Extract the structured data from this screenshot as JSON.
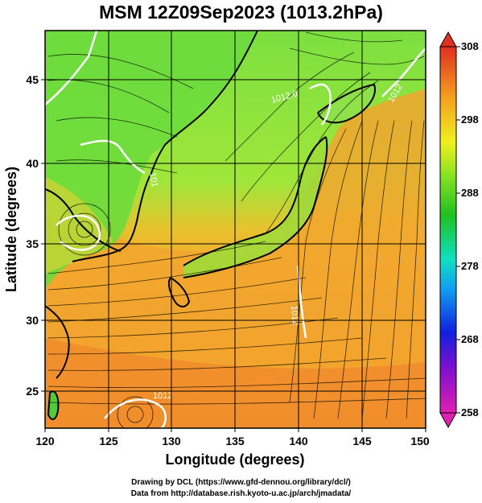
{
  "title": "MSM 12Z09Sep2023 (1013.2hPa)",
  "map": {
    "xlabel": "Longitude (degrees)",
    "ylabel": "Latitude  (degrees)",
    "x_ticks": [
      "120",
      "125",
      "130",
      "135",
      "140",
      "145",
      "150"
    ],
    "y_ticks": [
      "25",
      "30",
      "35",
      "40",
      "45"
    ],
    "lon_range": [
      120,
      150
    ],
    "lat_range": [
      22.4,
      47.6
    ],
    "contour_labels": [
      "1012.0",
      "1012",
      "101",
      "1012",
      "1012"
    ],
    "colors": {
      "cold_land": "#8ee84a",
      "green": "#5fd83a",
      "yellow": "#c8e832",
      "warm": "#f2a830",
      "hot": "#ef8a2a",
      "coast": "#000000",
      "contour": "#ffffff"
    }
  },
  "colorbar": {
    "tick_labels": [
      "308",
      "298",
      "288",
      "278",
      "268",
      "258"
    ],
    "min": 258,
    "max": 308
  },
  "footer": {
    "line1": "Drawing by DCL (https://www.gfd-dennou.org/library/dcl/)",
    "line2": "Data from http://database.rish.kyoto-u.ac.jp/arch/jmadata/"
  }
}
